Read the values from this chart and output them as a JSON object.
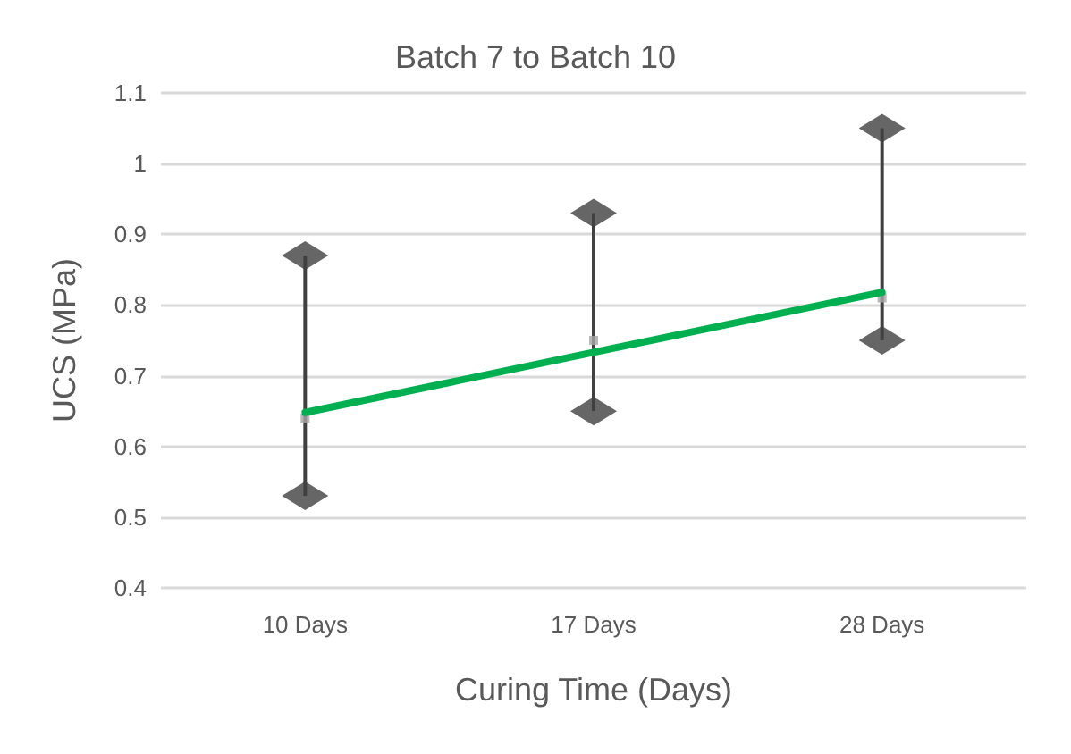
{
  "chart_data": {
    "type": "scatter",
    "title": "Batch 7 to Batch 10",
    "xlabel": "Curing Time (Days)",
    "ylabel": "UCS (MPa)",
    "categories": [
      "10 Days",
      "17 Days",
      "28 Days"
    ],
    "series": [
      {
        "type": "bar",
        "color": "#404040",
        "base": [
          0.53,
          0.65,
          0.75
        ],
        "values": [
          0.34,
          0.28,
          0.3
        ]
      },
      {
        "color": "#404040",
        "marker": "diamond",
        "values": [
          0.87,
          0.93,
          1.05
        ]
      },
      {
        "color": "#404040",
        "marker": "diamond",
        "values": [
          0.53,
          0.65,
          0.75
        ]
      },
      {
        "color": "#a6a6a6",
        "marker": "square",
        "values": [
          0.64,
          0.75,
          0.81
        ]
      },
      {
        "type": "line",
        "color": "#00b050",
        "marker": "none",
        "line_style": "solid",
        "values": [
          0.648,
          0.733,
          0.818
        ]
      }
    ],
    "ylim": [
      0.4,
      1.1
    ],
    "yticks": [
      0.4,
      0.5,
      0.6,
      0.7,
      0.8,
      0.9,
      1,
      1.1
    ],
    "grid": "y"
  }
}
